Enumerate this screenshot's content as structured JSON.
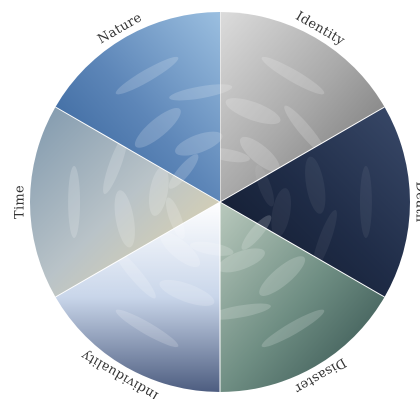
{
  "diagram": {
    "segments": [
      {
        "label": "Identity",
        "sky": "overcast-gray",
        "palette": [
          "#dcdcdc",
          "#a9a9a9",
          "#6e6e6e"
        ]
      },
      {
        "label": "Death",
        "sky": "dark-navy-clouds",
        "palette": [
          "#3a4a6a",
          "#1f2c47",
          "#0e1628"
        ]
      },
      {
        "label": "Disaster",
        "sky": "green-storm",
        "palette": [
          "#b9c9bd",
          "#6f8e83",
          "#2e4b49"
        ]
      },
      {
        "label": "Individuality",
        "sky": "sunburst-blue",
        "palette": [
          "#ffffff",
          "#c9d6ea",
          "#4d5d80"
        ]
      },
      {
        "label": "Time",
        "sky": "sunset-wispy",
        "palette": [
          "#e9d8a6",
          "#b9c3c8",
          "#7f98ad"
        ]
      },
      {
        "label": "Nature",
        "sky": "blue-sky-clouds",
        "palette": [
          "#9bbfe0",
          "#5d86b8",
          "#2f5d96"
        ]
      }
    ]
  }
}
